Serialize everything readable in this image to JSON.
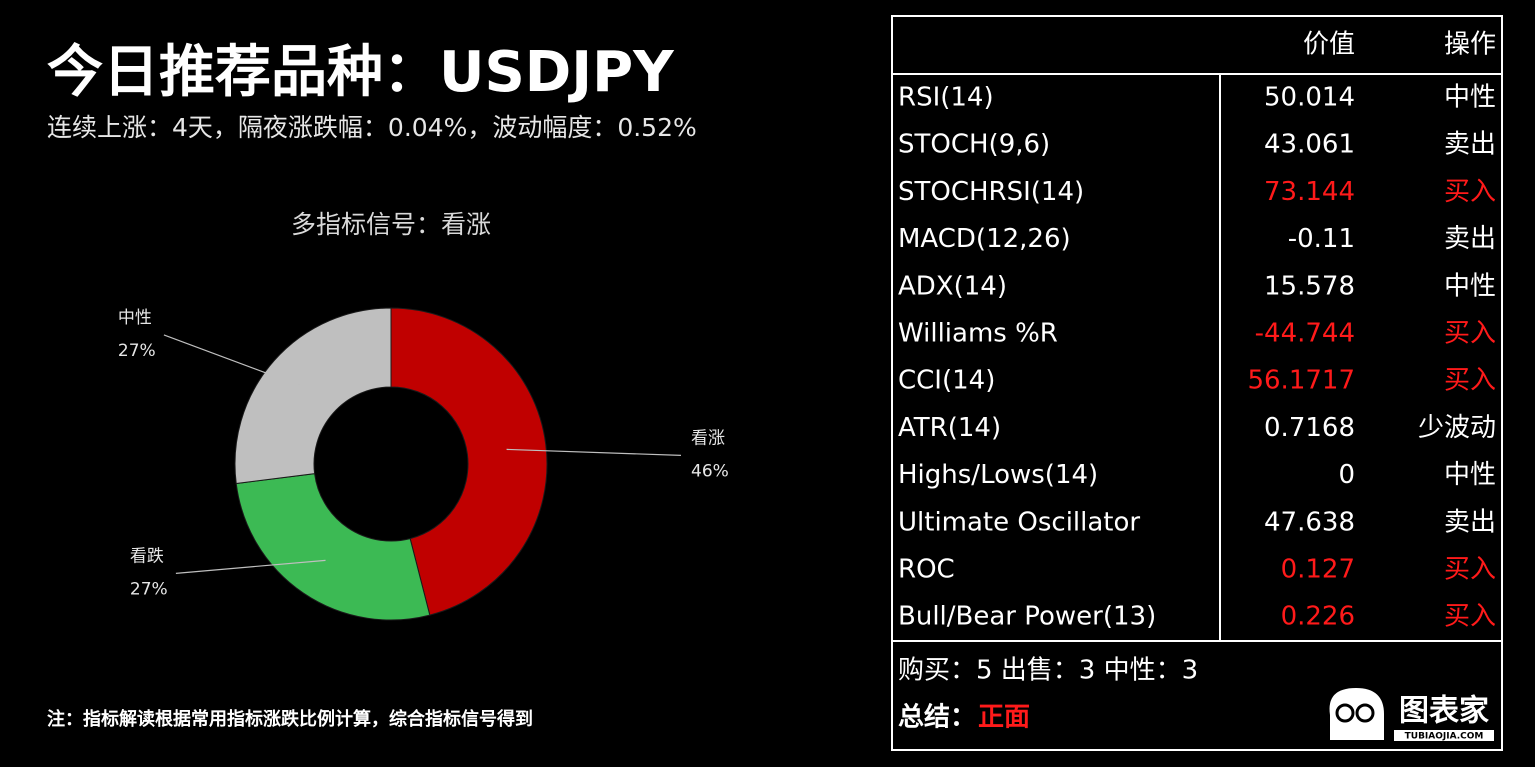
{
  "header": {
    "title": "今日推荐品种：USDJPY",
    "subtitle": "连续上涨：4天，隔夜涨跌幅：0.04%，波动幅度：0.52%"
  },
  "chart_data": {
    "type": "pie",
    "title": "多指标信号：看涨",
    "categories": [
      "看涨",
      "看跌",
      "中性"
    ],
    "values": [
      46,
      27,
      27
    ],
    "value_labels": [
      "46%",
      "27%",
      "27%"
    ],
    "colors": [
      "#c00000",
      "#3cba54",
      "#bfbfbf"
    ],
    "donut": true
  },
  "table": {
    "columns": [
      "价值",
      "操作"
    ],
    "rows": [
      {
        "name": "RSI(14)",
        "value": "50.014",
        "action": "中性",
        "color": "#ffffff"
      },
      {
        "name": "STOCH(9,6)",
        "value": "43.061",
        "action": "卖出",
        "color": "#ffffff"
      },
      {
        "name": "STOCHRSI(14)",
        "value": "73.144",
        "action": "买入",
        "color": "#ff1a1a"
      },
      {
        "name": "MACD(12,26)",
        "value": "-0.11",
        "action": "卖出",
        "color": "#ffffff"
      },
      {
        "name": "ADX(14)",
        "value": "15.578",
        "action": "中性",
        "color": "#ffffff"
      },
      {
        "name": "Williams %R",
        "value": "-44.744",
        "action": "买入",
        "color": "#ff1a1a"
      },
      {
        "name": "CCI(14)",
        "value": "56.1717",
        "action": "买入",
        "color": "#ff1a1a"
      },
      {
        "name": "ATR(14)",
        "value": "0.7168",
        "action": "少波动",
        "color": "#ffffff"
      },
      {
        "name": "Highs/Lows(14)",
        "value": "0",
        "action": "中性",
        "color": "#ffffff"
      },
      {
        "name": "Ultimate Oscillator",
        "value": "47.638",
        "action": "卖出",
        "color": "#ffffff"
      },
      {
        "name": "ROC",
        "value": "0.127",
        "action": "买入",
        "color": "#ff1a1a"
      },
      {
        "name": "Bull/Bear Power(13)",
        "value": "0.226",
        "action": "买入",
        "color": "#ff1a1a"
      }
    ]
  },
  "summary": {
    "counts": "购买：5 出售：3 中性：3",
    "conclusion_label": "总结：",
    "conclusion": "正面",
    "conclusion_color": "#ff1a1a"
  },
  "note": "注：指标解读根据常用指标涨跌比例计算，综合指标信号得到",
  "logo": {
    "name": "图表家",
    "url": "TUBIAOJIA.COM"
  }
}
